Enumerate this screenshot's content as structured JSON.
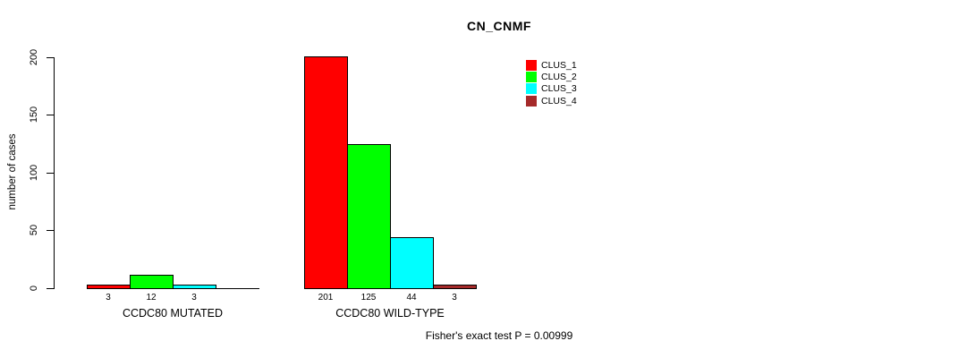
{
  "chart_data": {
    "type": "bar",
    "title": "CN_CNMF",
    "xlabel": "",
    "ylabel": "number of cases",
    "ylim": [
      0,
      200
    ],
    "yticks": [
      0,
      50,
      100,
      150,
      200
    ],
    "grid": false,
    "legend_position": "top-right",
    "categories": [
      "CCDC80 MUTATED",
      "CCDC80 WILD-TYPE"
    ],
    "series": [
      {
        "name": "CLUS_1",
        "color": "#FF0000",
        "values": [
          3,
          201
        ]
      },
      {
        "name": "CLUS_2",
        "color": "#00FF00",
        "values": [
          12,
          125
        ]
      },
      {
        "name": "CLUS_3",
        "color": "#00FFFF",
        "values": [
          3,
          44
        ]
      },
      {
        "name": "CLUS_4",
        "color": "#A52A2A",
        "values": [
          0,
          3
        ]
      }
    ],
    "groups": [
      {
        "label": "CCDC80 MUTATED",
        "values": [
          3,
          12,
          3,
          0
        ],
        "bar_labels": [
          "3",
          "12",
          "3",
          ""
        ]
      },
      {
        "label": "CCDC80 WILD-TYPE",
        "values": [
          201,
          125,
          44,
          3
        ],
        "bar_labels": [
          "201",
          "125",
          "44",
          "3"
        ]
      }
    ],
    "annotation": "Fisher's exact test P = 0.00999"
  },
  "colors": {
    "axis": "#000000",
    "bar_border": "#000000",
    "background": "#FFFFFF",
    "text": "#000000"
  }
}
